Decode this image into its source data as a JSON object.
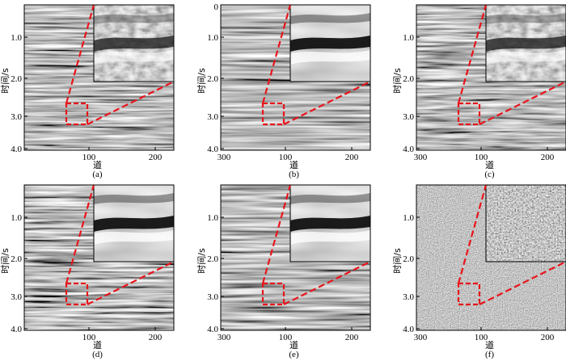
{
  "figure": {
    "panels": [
      {
        "id": "a",
        "caption": "(a)",
        "top_tick": "",
        "style": "seis"
      },
      {
        "id": "b",
        "caption": "(b)",
        "top_tick": "0",
        "style": "smooth"
      },
      {
        "id": "c",
        "caption": "(c)",
        "top_tick": "",
        "style": "seis2"
      },
      {
        "id": "d",
        "caption": "(d)",
        "top_tick": "",
        "style": "seis3"
      },
      {
        "id": "e",
        "caption": "(e)",
        "top_tick": "",
        "style": "smooth2"
      },
      {
        "id": "f",
        "caption": "(f)",
        "top_tick": "",
        "style": "noise"
      }
    ],
    "y_axis_label": "时间/s",
    "x_axis_label": "道",
    "y_ticks": [
      "1.0",
      "2.0",
      "3.0",
      "4.0"
    ],
    "x_ticks": [
      "100",
      "200",
      "300"
    ],
    "colors": {
      "highlight": "#e8141b",
      "frame": "#000000"
    }
  }
}
